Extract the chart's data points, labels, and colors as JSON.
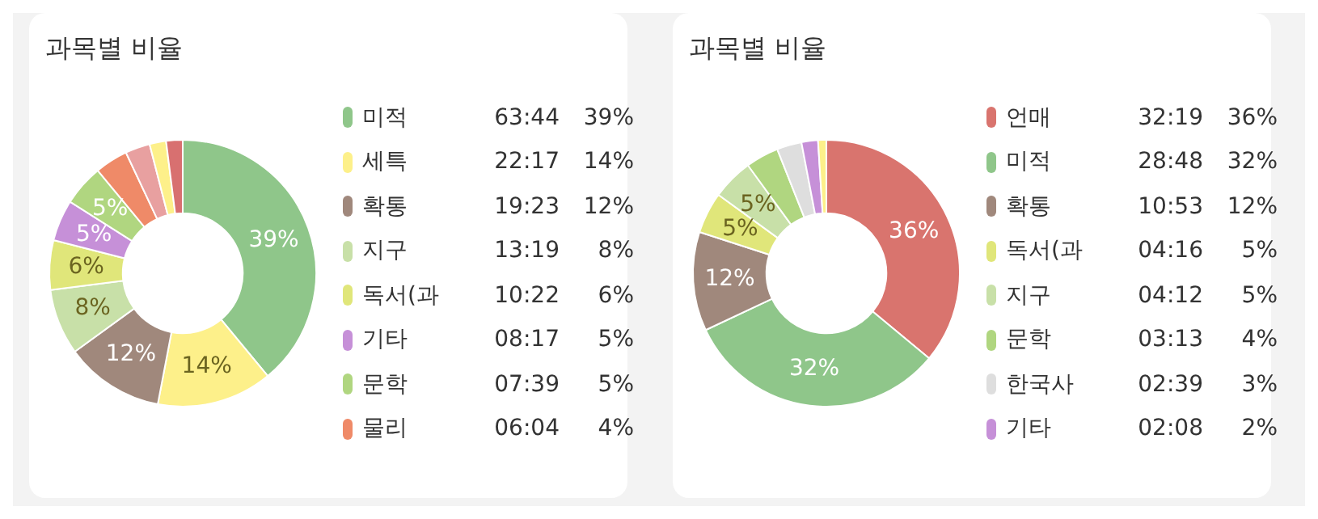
{
  "chart_data": [
    {
      "type": "donut",
      "title": "과목별 비율",
      "legend": "right",
      "categories": [
        "미적",
        "세특",
        "확통",
        "지구",
        "독서(과",
        "기타",
        "문학",
        "물리",
        null,
        null,
        null
      ],
      "values": [
        39,
        14,
        12,
        8,
        6,
        5,
        5,
        4,
        3,
        2,
        2
      ],
      "colors": [
        "#8fc68a",
        "#fdf08a",
        "#a0887c",
        "#c8e0a8",
        "#e0e67a",
        "#c690d8",
        "#b0d680",
        "#ef8a68",
        "#e8a0a0",
        "#fdf08a",
        "#d87070"
      ],
      "value_labels": [
        "39%",
        "14%",
        "12%",
        "8%",
        "6%",
        "5%",
        "5%",
        null,
        null,
        null,
        null
      ],
      "annotations": [
        "63:44 39%",
        "22:17 14%",
        "19:23 12%",
        "13:19 8%",
        "10:22 6%",
        "08:17 5%",
        "07:39 5%",
        "06:04 4%"
      ]
    },
    {
      "type": "donut",
      "title": "과목별 비율",
      "legend": "right",
      "categories": [
        "언매",
        "미적",
        "확통",
        "독서(과",
        "지구",
        "문학",
        "한국사",
        "기타",
        null
      ],
      "values": [
        36,
        32,
        12,
        5,
        5,
        4,
        3,
        2,
        1
      ],
      "colors": [
        "#d9746e",
        "#8fc68a",
        "#a0887c",
        "#e0e67a",
        "#c8e0a8",
        "#b0d680",
        "#dedede",
        "#c690d8",
        "#fdf08a"
      ],
      "value_labels": [
        "36%",
        "32%",
        "12%",
        "5%",
        "5%",
        null,
        null,
        null,
        null
      ],
      "annotations": [
        "32:19 36%",
        "28:48 32%",
        "10:53 12%",
        "04:16 5%",
        "04:12 5%",
        "03:13 4%",
        "02:39 3%",
        "02:08 2%"
      ]
    }
  ]
}
